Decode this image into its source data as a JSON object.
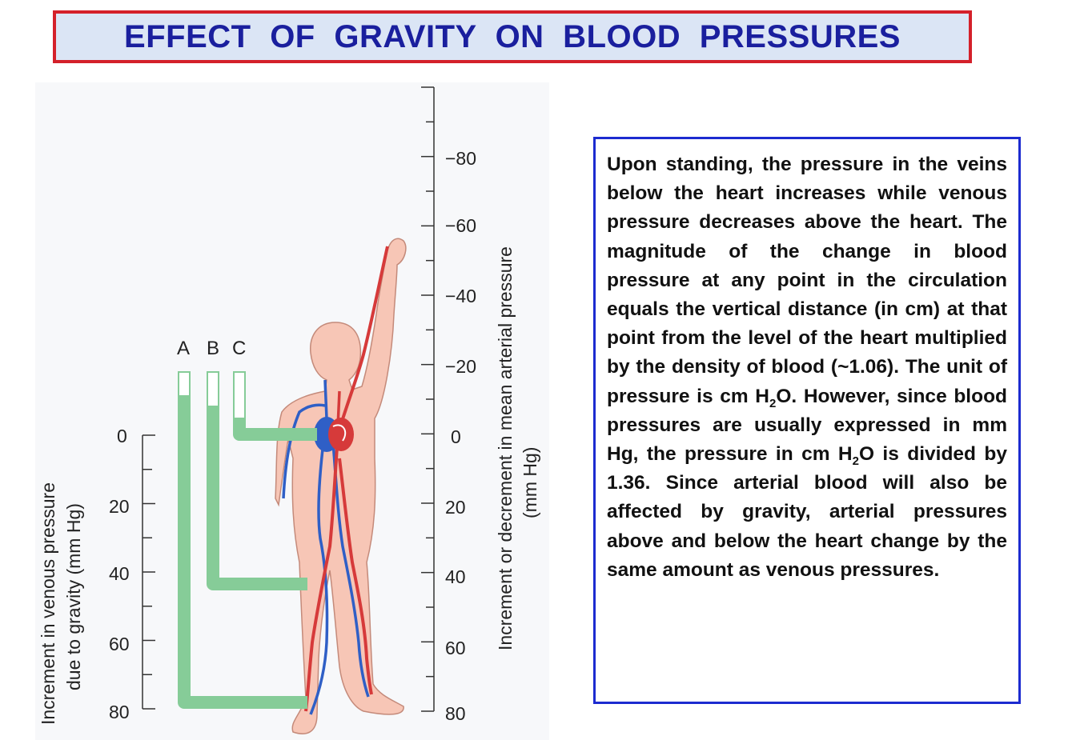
{
  "title": "EFFECT OF GRAVITY ON BLOOD PRESSURES",
  "figure": {
    "tubes": [
      "A",
      "B",
      "C"
    ],
    "left_axis": {
      "title_line1": "Increment in venous pressure",
      "title_line2": "due to gravity (mm Hg)",
      "ticks": [
        "0",
        "20",
        "40",
        "60",
        "80"
      ]
    },
    "right_axis": {
      "title_line1": "Increment or decrement in mean arterial pressure",
      "title_line2": "(mm Hg)",
      "ticks": [
        "−80",
        "−60",
        "−40",
        "−20",
        "0",
        "20",
        "40",
        "60",
        "80"
      ]
    },
    "colors": {
      "tube": "#86cc98",
      "skin": "#f7c6b6",
      "skin_outline": "#c48a7a",
      "artery": "#d63a3a",
      "vein": "#2f5fc6"
    }
  },
  "explanation": {
    "part1": "Upon standing, the pressure in the veins below the heart increases while venous pressure decreases above the heart.  The magnitude of the change in blood pressure at any point in the circulation equals the vertical distance (in cm) at that point from the level of the heart multiplied by the density of blood (~1.06).  The unit of pressure is cm H",
    "sub1": "2",
    "part2": "O.    However, since blood pressures are usually expressed in mm Hg, the pressure in cm H",
    "sub2": "2",
    "part3": "O is divided by 1.36.  Since arterial blood will also be affected by gravity, arterial pressures above and below the heart change by the same amount as venous pressures."
  }
}
